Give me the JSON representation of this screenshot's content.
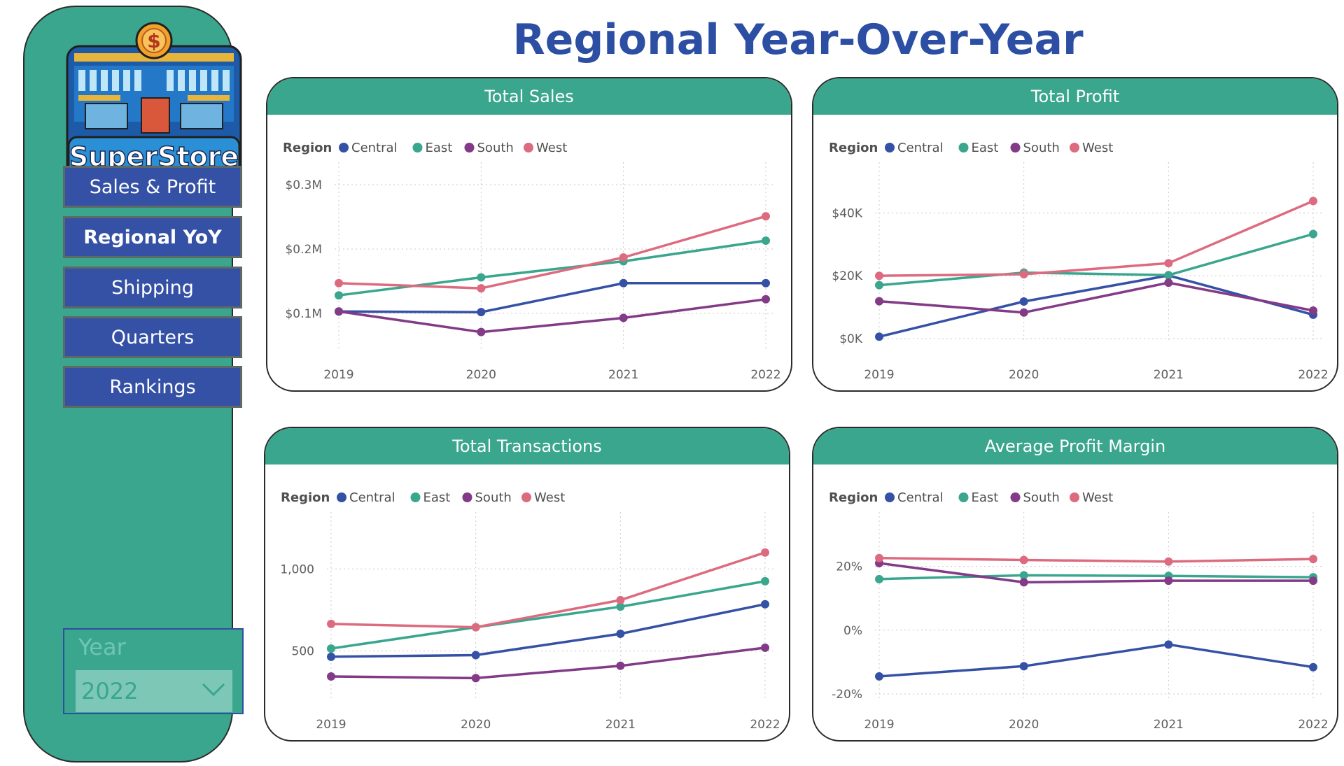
{
  "sidebar": {
    "logo_text": "SuperStore",
    "nav": [
      {
        "label": "Sales & Profit",
        "active": false
      },
      {
        "label": "Regional YoY",
        "active": true
      },
      {
        "label": "Shipping",
        "active": false
      },
      {
        "label": "Quarters",
        "active": false
      },
      {
        "label": "Rankings",
        "active": false
      }
    ],
    "year_slicer": {
      "label": "Year",
      "value": "2022",
      "icon": "chevron-down-icon"
    }
  },
  "page": {
    "title": "Regional Year-Over-Year"
  },
  "colors": {
    "Central": "#3551a5",
    "East": "#3aa68e",
    "South": "#833a87",
    "West": "#dd6b7f",
    "accent": "#3aa68e",
    "title": "#2d4fa3"
  },
  "legend": {
    "title": "Region",
    "items": [
      "Central",
      "East",
      "South",
      "West"
    ]
  },
  "chart_data": [
    {
      "id": "total-sales",
      "type": "line",
      "title": "Total Sales",
      "x": [
        "2019",
        "2020",
        "2021",
        "2022"
      ],
      "ylim": [
        0.05,
        0.3
      ],
      "yticks": [
        0.1,
        0.2,
        0.3
      ],
      "yticklabels": [
        "$0.1M",
        "$0.2M",
        "$0.3M"
      ],
      "grid": true,
      "legend_position": "top-left",
      "series": [
        {
          "name": "Central",
          "values": [
            0.103,
            0.102,
            0.147,
            0.147
          ]
        },
        {
          "name": "East",
          "values": [
            0.128,
            0.156,
            0.181,
            0.213
          ]
        },
        {
          "name": "South",
          "values": [
            0.103,
            0.071,
            0.093,
            0.122
          ]
        },
        {
          "name": "West",
          "values": [
            0.147,
            0.139,
            0.187,
            0.251
          ]
        }
      ]
    },
    {
      "id": "total-profit",
      "type": "line",
      "title": "Total Profit",
      "x": [
        "2019",
        "2020",
        "2021",
        "2022"
      ],
      "ylim": [
        0,
        49000
      ],
      "yticks": [
        0,
        20000,
        40000
      ],
      "yticklabels": [
        "$0K",
        "$20K",
        "$40K"
      ],
      "grid": true,
      "legend_position": "top-left",
      "series": [
        {
          "name": "Central",
          "values": [
            600,
            11800,
            20100,
            7600
          ]
        },
        {
          "name": "East",
          "values": [
            17000,
            21000,
            20200,
            33300
          ]
        },
        {
          "name": "South",
          "values": [
            11900,
            8300,
            17800,
            8900
          ]
        },
        {
          "name": "West",
          "values": [
            20000,
            20500,
            24000,
            43800
          ]
        }
      ]
    },
    {
      "id": "total-transactions",
      "type": "line",
      "title": "Total Transactions",
      "x": [
        "2019",
        "2020",
        "2021",
        "2022"
      ],
      "ylim": [
        230,
        1210
      ],
      "yticks": [
        500,
        1000
      ],
      "yticklabels": [
        "500",
        "1,000"
      ],
      "grid": true,
      "legend_position": "top-left",
      "series": [
        {
          "name": "Central",
          "values": [
            465,
            475,
            605,
            785
          ]
        },
        {
          "name": "East",
          "values": [
            515,
            645,
            770,
            925
          ]
        },
        {
          "name": "South",
          "values": [
            345,
            335,
            410,
            520
          ]
        },
        {
          "name": "West",
          "values": [
            665,
            645,
            810,
            1100
          ]
        }
      ]
    },
    {
      "id": "average-profit-margin",
      "type": "line",
      "title": "Average Profit Margin",
      "x": [
        "2019",
        "2020",
        "2021",
        "2022"
      ],
      "ylim": [
        -20,
        30
      ],
      "yticks": [
        -20,
        0,
        20
      ],
      "yticklabels": [
        "-20%",
        "0%",
        "20%"
      ],
      "grid": true,
      "legend_position": "top-left",
      "series": [
        {
          "name": "Central",
          "values": [
            -14.5,
            -11.3,
            -4.5,
            -11.6
          ]
        },
        {
          "name": "East",
          "values": [
            16.0,
            17.2,
            17.0,
            16.6
          ]
        },
        {
          "name": "South",
          "values": [
            21.0,
            15.0,
            15.5,
            15.5
          ]
        },
        {
          "name": "West",
          "values": [
            22.6,
            22.0,
            21.5,
            22.3
          ]
        }
      ]
    }
  ]
}
